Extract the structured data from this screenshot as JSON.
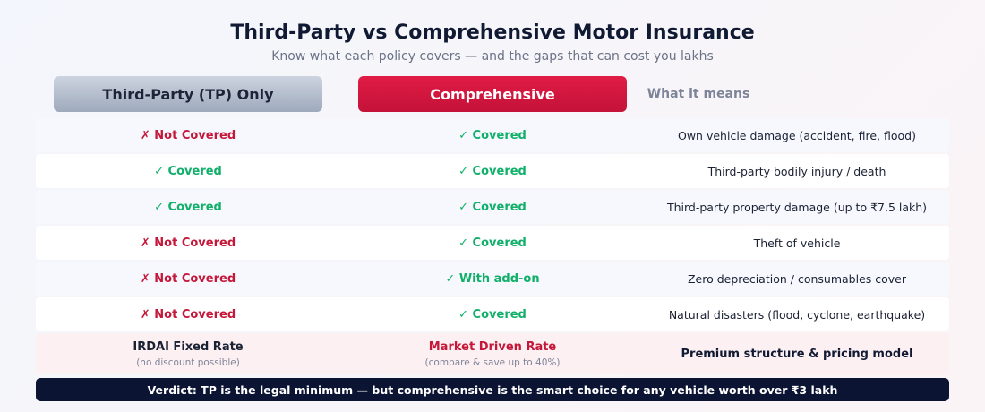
{
  "header": {
    "title": "Third-Party vs Comprehensive Motor Insurance",
    "subtitle": "Know what each policy covers — and the gaps that can cost you lakhs"
  },
  "columns": {
    "tp": "Third-Party (TP) Only",
    "comprehensive": "Comprehensive",
    "meaning": "What it means"
  },
  "rows": [
    {
      "tp": "✗ Not Covered",
      "tp_status": "no",
      "comp": "✓ Covered",
      "comp_status": "yes",
      "meaning": "Own vehicle damage (accident, fire, flood)"
    },
    {
      "tp": "✓ Covered",
      "tp_status": "yes",
      "comp": "✓ Covered",
      "comp_status": "yes",
      "meaning": "Third-party bodily injury / death"
    },
    {
      "tp": "✓ Covered",
      "tp_status": "yes",
      "comp": "✓ Covered",
      "comp_status": "yes",
      "meaning": "Third-party property damage (up to ₹7.5 lakh)"
    },
    {
      "tp": "✗ Not Covered",
      "tp_status": "no",
      "comp": "✓ Covered",
      "comp_status": "yes",
      "meaning": "Theft of vehicle"
    },
    {
      "tp": "✗ Not Covered",
      "tp_status": "no",
      "comp": "✓ With add-on",
      "comp_status": "yes",
      "meaning": "Zero depreciation / consumables cover"
    },
    {
      "tp": "✗ Not Covered",
      "tp_status": "no",
      "comp": "✓ Covered",
      "comp_status": "yes",
      "meaning": "Natural disasters (flood, cyclone, earthquake)"
    }
  ],
  "premium": {
    "tp_main": "IRDAI Fixed Rate",
    "tp_sub": "(no discount possible)",
    "comp_main": "Market Driven Rate",
    "comp_sub": "(compare & save up to 40%)",
    "meaning": "Premium structure & pricing model"
  },
  "verdict": "Verdict: TP is the legal minimum — but comprehensive is the smart choice for any vehicle worth over ₹3 lakh",
  "colors": {
    "covered": "#10b06a",
    "not_covered": "#c4173a",
    "accent": "#e01c45",
    "navy": "#0b1433"
  }
}
